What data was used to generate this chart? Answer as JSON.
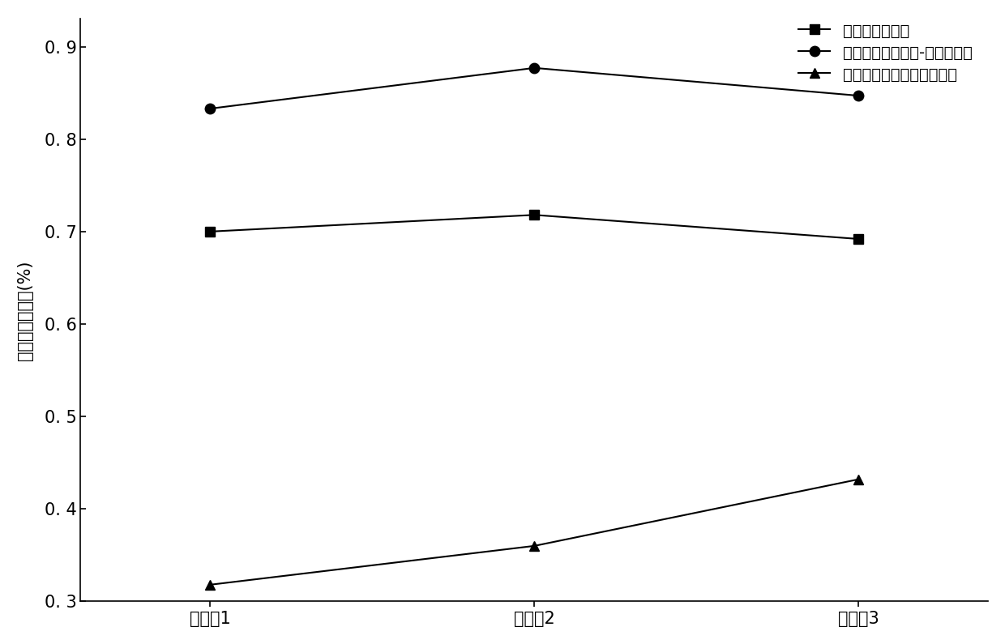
{
  "x_labels": [
    "实施例1",
    "实施例2",
    "实施例3"
  ],
  "x_values": [
    1,
    2,
    3
  ],
  "series": [
    {
      "label": "单一复合酶提取",
      "values": [
        0.7,
        0.718,
        0.692
      ],
      "color": "#000000",
      "marker": "s",
      "markersize": 8,
      "linewidth": 1.5
    },
    {
      "label": "低温等离子体处理-复合酶提取",
      "values": [
        0.833,
        0.877,
        0.847
      ],
      "color": "#000000",
      "marker": "o",
      "markersize": 9,
      "linewidth": 1.5
    },
    {
      "label": "单一低温等离子体处理提取",
      "values": [
        0.318,
        0.36,
        0.432
      ],
      "color": "#000000",
      "marker": "^",
      "markersize": 9,
      "linewidth": 1.5
    }
  ],
  "ylabel": "人参叶多酚得率(%)",
  "ylim": [
    0.3,
    0.93
  ],
  "yticks": [
    0.3,
    0.4,
    0.5,
    0.6,
    0.7,
    0.8,
    0.9
  ],
  "ytick_labels": [
    "0. 3",
    "0. 4",
    "0. 5",
    "0. 6",
    "0. 7",
    "0. 8",
    "0. 9"
  ],
  "xlim": [
    0.6,
    3.4
  ],
  "background_color": "#ffffff",
  "label_fontsize": 15,
  "tick_fontsize": 15,
  "legend_fontsize": 14
}
